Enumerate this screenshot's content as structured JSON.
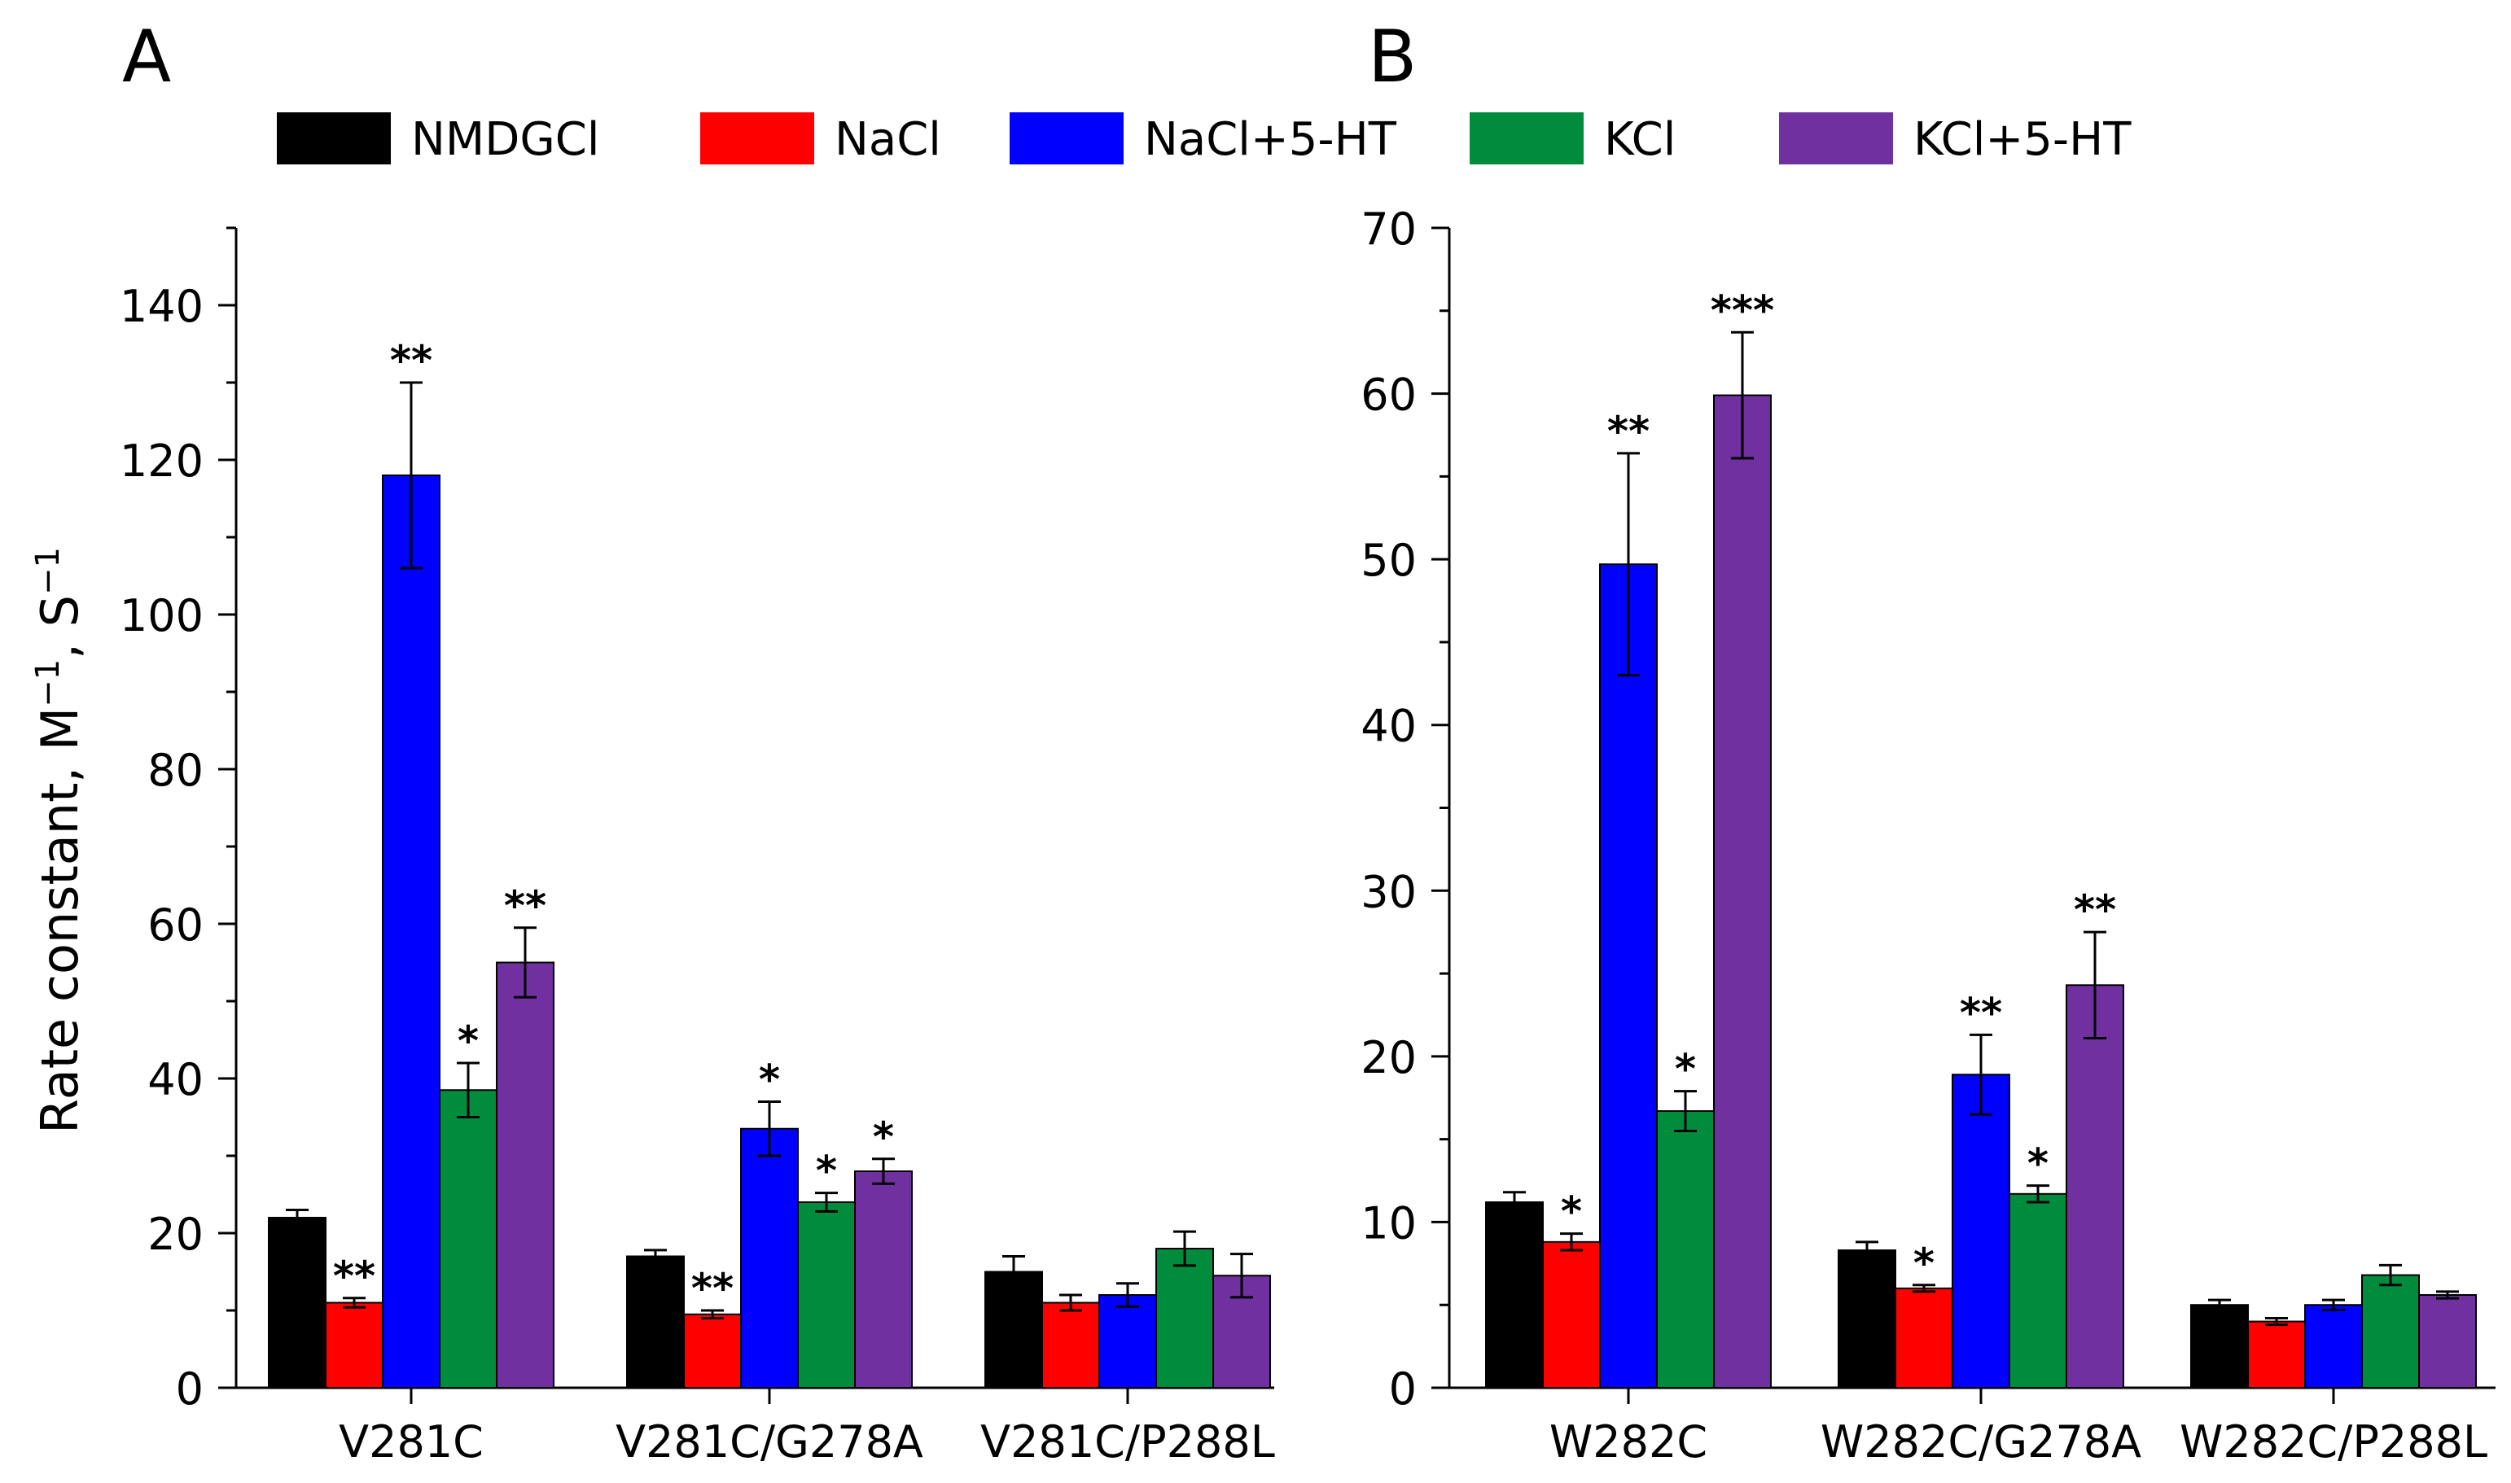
{
  "legend": [
    {
      "label": "NMDGCl",
      "color": "#000000"
    },
    {
      "label": "NaCl",
      "color": "#ff0000"
    },
    {
      "label": "NaCl+5-HT",
      "color": "#0000ff"
    },
    {
      "label": "KCl",
      "color": "#008c3c"
    },
    {
      "label": "KCl+5-HT",
      "color": "#7030a0"
    }
  ],
  "chart_data": [
    {
      "type": "bar",
      "panel_label": "A",
      "ylabel": "Rate constant, M",
      "ylabel_unit_exp": "−1",
      "ylabel_tail": ", S",
      "ylim": [
        0,
        150
      ],
      "yticks": [
        0,
        20,
        40,
        60,
        80,
        100,
        120,
        140
      ],
      "categories": [
        "V281C",
        "V281C/G278A",
        "V281C/P288L"
      ],
      "series": [
        {
          "name": "NMDGCl",
          "values": [
            22,
            17,
            15
          ],
          "errors": [
            1,
            0.8,
            2
          ],
          "sig": [
            "",
            "",
            ""
          ]
        },
        {
          "name": "NaCl",
          "values": [
            11,
            9.5,
            11
          ],
          "errors": [
            0.6,
            0.5,
            1
          ],
          "sig": [
            "**",
            "**",
            ""
          ]
        },
        {
          "name": "NaCl+5-HT",
          "values": [
            118,
            33.5,
            12
          ],
          "errors": [
            12,
            3.5,
            1.5
          ],
          "sig": [
            "**",
            "*",
            ""
          ]
        },
        {
          "name": "KCl",
          "values": [
            38.5,
            24,
            18
          ],
          "errors": [
            3.5,
            1.2,
            2.2
          ],
          "sig": [
            "*",
            "*",
            ""
          ]
        },
        {
          "name": "KCl+5-HT",
          "values": [
            55,
            28,
            14.5
          ],
          "errors": [
            4.5,
            1.6,
            2.8
          ],
          "sig": [
            "**",
            "*",
            ""
          ]
        }
      ]
    },
    {
      "type": "bar",
      "panel_label": "B",
      "ylabel": "",
      "ylim": [
        0,
        70
      ],
      "yticks": [
        0,
        10,
        20,
        30,
        40,
        50,
        60,
        70
      ],
      "categories": [
        "W282C",
        "W282C/G278A",
        "W282C/P288L"
      ],
      "series": [
        {
          "name": "NMDGCl",
          "values": [
            11.2,
            8.3,
            5
          ],
          "errors": [
            0.6,
            0.5,
            0.3
          ],
          "sig": [
            "",
            "",
            ""
          ]
        },
        {
          "name": "NaCl",
          "values": [
            8.8,
            6,
            4
          ],
          "errors": [
            0.5,
            0.2,
            0.2
          ],
          "sig": [
            "*",
            "*",
            ""
          ]
        },
        {
          "name": "NaCl+5-HT",
          "values": [
            49.7,
            18.9,
            5
          ],
          "errors": [
            6.7,
            2.4,
            0.3
          ],
          "sig": [
            "**",
            "**",
            ""
          ]
        },
        {
          "name": "KCl",
          "values": [
            16.7,
            11.7,
            6.8
          ],
          "errors": [
            1.2,
            0.5,
            0.6
          ],
          "sig": [
            "*",
            "*",
            ""
          ]
        },
        {
          "name": "KCl+5-HT",
          "values": [
            59.9,
            24.3,
            5.6
          ],
          "errors": [
            3.8,
            3.2,
            0.2
          ],
          "sig": [
            "***",
            "**",
            ""
          ]
        }
      ]
    }
  ]
}
